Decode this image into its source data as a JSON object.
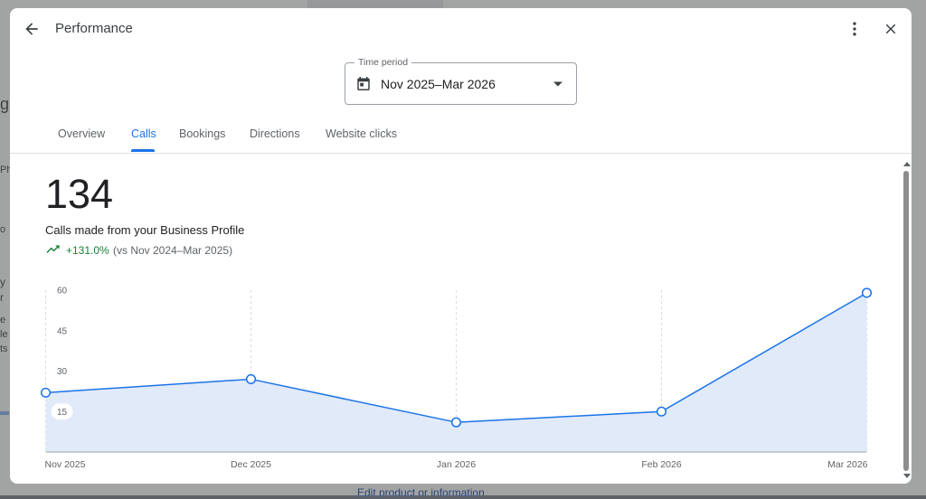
{
  "dialog": {
    "title": "Performance",
    "back_icon": "arrow-back-icon",
    "more_icon": "more-vert-icon",
    "close_icon": "close-icon"
  },
  "time_period": {
    "label": "Time period",
    "value": "Nov 2025–Mar 2026",
    "icon": "calendar-icon"
  },
  "tabs": [
    {
      "label": "Overview",
      "active": false
    },
    {
      "label": "Calls",
      "active": true
    },
    {
      "label": "Bookings",
      "active": false
    },
    {
      "label": "Directions",
      "active": false
    },
    {
      "label": "Website clicks",
      "active": false
    }
  ],
  "metric": {
    "value": "134",
    "label": "Calls made from your Business Profile",
    "delta": "+131.0%",
    "comparison": "(vs Nov 2024–Mar 2025)",
    "delta_color": "#188038"
  },
  "background": {
    "link_text": "Edit product or information"
  },
  "chart_data": {
    "type": "area",
    "x": [
      "Nov 2025",
      "Dec 2025",
      "Jan 2026",
      "Feb 2026",
      "Mar 2026"
    ],
    "series": [
      {
        "values": [
          22,
          27,
          11,
          15,
          59
        ]
      }
    ],
    "yticks": [
      15,
      30,
      45,
      60
    ],
    "ylim": [
      0,
      60
    ],
    "grid": "vertical-dashed",
    "line_color": "#1a73e8",
    "fill_color": "#e1eaf9"
  }
}
